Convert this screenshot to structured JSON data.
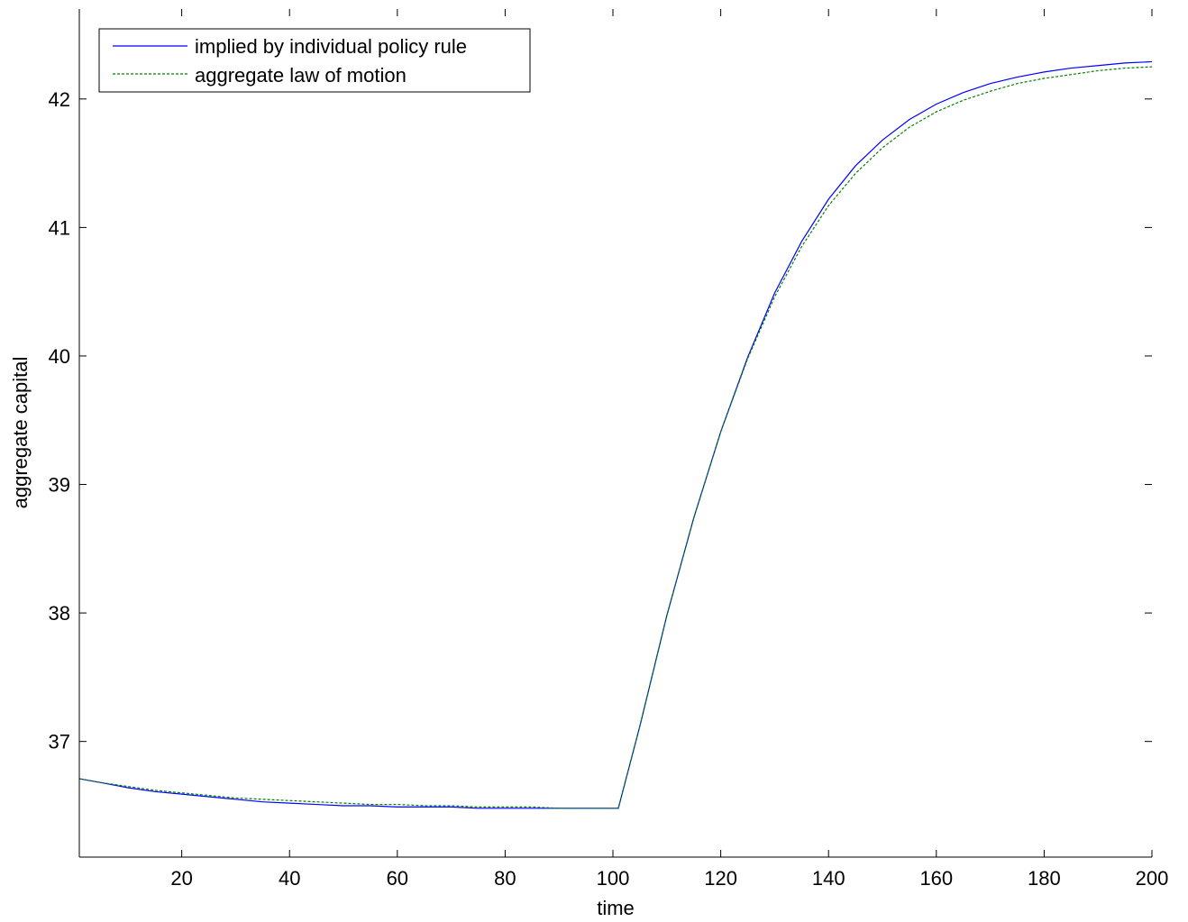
{
  "chart_data": {
    "type": "line",
    "title": "",
    "xlabel": "time",
    "ylabel": "aggregate capital",
    "xlim": [
      1,
      200
    ],
    "ylim": [
      36.1,
      42.7
    ],
    "xticks": [
      20,
      40,
      60,
      80,
      100,
      120,
      140,
      160,
      180,
      200
    ],
    "yticks": [
      37,
      38,
      39,
      40,
      41,
      42
    ],
    "grid": false,
    "legend_position": "top-left",
    "series": [
      {
        "name": "implied by individual policy rule",
        "color": "#0000ff",
        "style": "solid",
        "x": [
          1,
          5,
          10,
          15,
          20,
          25,
          30,
          35,
          40,
          45,
          50,
          55,
          60,
          65,
          70,
          75,
          80,
          85,
          90,
          95,
          101,
          105,
          110,
          115,
          120,
          125,
          130,
          135,
          140,
          145,
          150,
          155,
          160,
          165,
          170,
          175,
          180,
          185,
          190,
          195,
          200
        ],
        "y": [
          36.71,
          36.68,
          36.64,
          36.61,
          36.59,
          36.57,
          36.55,
          36.53,
          36.52,
          36.51,
          36.5,
          36.5,
          36.49,
          36.49,
          36.49,
          36.48,
          36.48,
          36.48,
          36.48,
          36.48,
          36.48,
          37.12,
          37.98,
          38.74,
          39.41,
          39.99,
          40.49,
          40.89,
          41.22,
          41.48,
          41.68,
          41.84,
          41.96,
          42.05,
          42.12,
          42.17,
          42.21,
          42.24,
          42.26,
          42.28,
          42.29
        ]
      },
      {
        "name": "aggregate law of motion",
        "color": "#008000",
        "style": "dashed",
        "x": [
          1,
          5,
          10,
          15,
          20,
          25,
          30,
          35,
          40,
          45,
          50,
          55,
          60,
          65,
          70,
          75,
          80,
          85,
          90,
          95,
          101,
          105,
          110,
          115,
          120,
          125,
          130,
          135,
          140,
          145,
          150,
          155,
          160,
          165,
          170,
          175,
          180,
          185,
          190,
          195,
          200
        ],
        "y": [
          36.71,
          36.68,
          36.65,
          36.62,
          36.6,
          36.58,
          36.56,
          36.55,
          36.54,
          36.53,
          36.52,
          36.51,
          36.51,
          36.5,
          36.5,
          36.49,
          36.49,
          36.49,
          36.48,
          36.48,
          36.48,
          37.12,
          37.98,
          38.74,
          39.41,
          39.98,
          40.46,
          40.85,
          41.17,
          41.42,
          41.62,
          41.78,
          41.9,
          41.99,
          42.06,
          42.12,
          42.16,
          42.19,
          42.22,
          42.24,
          42.25
        ]
      }
    ]
  }
}
